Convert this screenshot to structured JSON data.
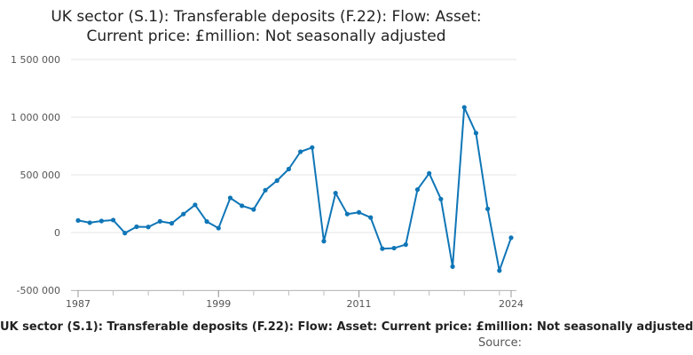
{
  "chart_data": {
    "type": "line",
    "title_lines": [
      "UK sector (S.1): Transferable deposits (F.22): Flow: Asset:",
      "Current price: £million: Not seasonally adjusted"
    ],
    "caption": "UK sector (S.1): Transferable deposits (F.22): Flow: Asset: Current price: £million: Not seasonally adjusted",
    "source_label": "Source:",
    "x": [
      1987,
      1988,
      1989,
      1990,
      1991,
      1992,
      1993,
      1994,
      1995,
      1996,
      1997,
      1998,
      1999,
      2000,
      2001,
      2002,
      2003,
      2004,
      2005,
      2006,
      2007,
      2008,
      2009,
      2010,
      2011,
      2012,
      2013,
      2014,
      2015,
      2016,
      2017,
      2018,
      2019,
      2020,
      2021,
      2022,
      2023,
      2024
    ],
    "values": [
      105000,
      85000,
      100000,
      108000,
      -5000,
      50000,
      48000,
      97000,
      80000,
      160000,
      240000,
      95000,
      38000,
      300000,
      232000,
      200000,
      367000,
      450000,
      550000,
      700000,
      737000,
      -75000,
      342000,
      160000,
      175000,
      130000,
      -140000,
      -135000,
      -105000,
      372000,
      513000,
      290000,
      -295000,
      1085000,
      862000,
      205000,
      -330000,
      -45000
    ],
    "x_ticks": [
      "1987",
      "1999",
      "2011",
      "2024"
    ],
    "y_ticks": [
      -500000,
      0,
      500000,
      1000000,
      1500000
    ],
    "y_tick_labels": [
      "-500 000",
      "0",
      "500 000",
      "1 000 000",
      "1 500 000"
    ],
    "ylim": [
      -500000,
      1500000
    ],
    "xlim": [
      1987,
      2024
    ],
    "grid": true,
    "line_color": "#0f76b7"
  }
}
